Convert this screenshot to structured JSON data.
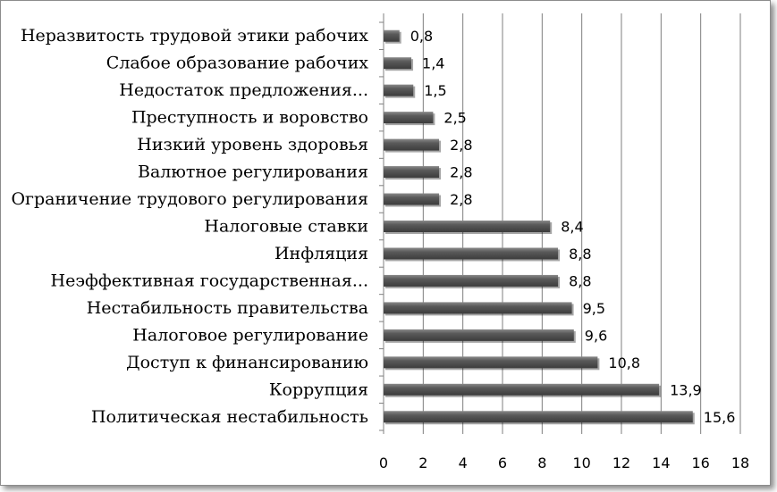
{
  "chart_data": {
    "type": "bar",
    "orientation": "horizontal",
    "categories": [
      "Неразвитость трудовой этики рабочих",
      "Слабое образование рабочих",
      "Недостаток предложения...",
      "Преступность и воровство",
      "Низкий уровень здоровья",
      "Валютное регулирования",
      "Ограничение трудового регулирования",
      "Налоговые ставки",
      "Инфляция",
      "Неэффективная государственная...",
      "Нестабильность правительства",
      "Налоговое регулирование",
      "Доступ к финансированию",
      "Коррупция",
      "Политическая нестабильность"
    ],
    "values": [
      0.8,
      1.4,
      1.5,
      2.5,
      2.8,
      2.8,
      2.8,
      8.4,
      8.8,
      8.8,
      9.5,
      9.6,
      10.8,
      13.9,
      15.6
    ],
    "value_labels": [
      "0,8",
      "1,4",
      "1,5",
      "2,5",
      "2,8",
      "2,8",
      "2,8",
      "8,4",
      "8,8",
      "8,8",
      "9,5",
      "9,6",
      "10,8",
      "13,9",
      "15,6"
    ],
    "xlim": [
      0,
      18
    ],
    "x_ticks": [
      "0",
      "2",
      "4",
      "6",
      "8",
      "10",
      "12",
      "14",
      "16",
      "18"
    ],
    "title": "",
    "xlabel": "",
    "ylabel": "",
    "grid": "vertical",
    "legend": "none",
    "colors": {
      "bar": "#555555",
      "bar_highlight": "#8a8a8a",
      "grid": "#7f7f7f"
    }
  }
}
